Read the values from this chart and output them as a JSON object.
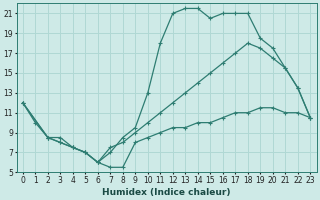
{
  "xlabel": "Humidex (Indice chaleur)",
  "ylabel": "",
  "bg_color": "#ceeae7",
  "grid_color": "#b0d8d4",
  "line_color": "#2e7d72",
  "xlim": [
    -0.5,
    23.5
  ],
  "ylim": [
    5,
    22
  ],
  "xticks": [
    0,
    1,
    2,
    3,
    4,
    5,
    6,
    7,
    8,
    9,
    10,
    11,
    12,
    13,
    14,
    15,
    16,
    17,
    18,
    19,
    20,
    21,
    22,
    23
  ],
  "yticks": [
    5,
    7,
    9,
    11,
    13,
    15,
    17,
    19,
    21
  ],
  "curve_top_x": [
    0,
    1,
    2,
    3,
    4,
    5,
    6,
    7,
    8,
    9,
    10,
    11,
    12,
    13,
    14,
    15,
    16,
    17,
    18,
    19,
    20,
    21,
    22,
    23
  ],
  "curve_top_y": [
    12,
    10,
    8.5,
    8.5,
    7.5,
    7,
    6,
    7,
    8.5,
    9.5,
    13,
    18,
    21,
    21.5,
    21.5,
    20.5,
    21,
    21,
    21,
    18.5,
    17.5,
    15.5,
    13.5,
    10.5
  ],
  "curve_mid_x": [
    0,
    2,
    3,
    4,
    5,
    6,
    7,
    8,
    9,
    10,
    11,
    12,
    13,
    14,
    15,
    16,
    17,
    18,
    19,
    20,
    21,
    22,
    23
  ],
  "curve_mid_y": [
    12,
    8.5,
    8,
    7.5,
    7,
    6,
    7.5,
    8,
    9,
    10,
    11,
    12,
    13,
    14,
    15,
    16,
    17,
    18,
    17.5,
    16.5,
    15.5,
    13.5,
    10.5
  ],
  "curve_bot_x": [
    0,
    2,
    3,
    4,
    5,
    6,
    7,
    8,
    9,
    10,
    11,
    12,
    13,
    14,
    15,
    16,
    17,
    18,
    19,
    20,
    21,
    22,
    23
  ],
  "curve_bot_y": [
    12,
    8.5,
    8,
    7.5,
    7,
    6,
    5.5,
    5.5,
    8,
    8.5,
    9,
    9.5,
    9.5,
    10,
    10,
    10.5,
    11,
    11,
    11.5,
    11.5,
    11,
    11,
    10.5
  ]
}
